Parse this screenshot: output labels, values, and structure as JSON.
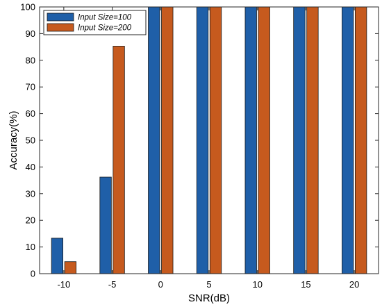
{
  "chart_data": {
    "type": "bar",
    "categories": [
      "-10",
      "-5",
      "0",
      "5",
      "10",
      "15",
      "20"
    ],
    "series": [
      {
        "name": "Input Size=100",
        "values": [
          13.3,
          36.2,
          100,
          100,
          100,
          100,
          100
        ],
        "color": "#1f5fa8"
      },
      {
        "name": "Input Size=200",
        "values": [
          4.5,
          85.3,
          100,
          100,
          100,
          100,
          100
        ],
        "color": "#c65a1e"
      }
    ],
    "title": "",
    "xlabel": "SNR(dB)",
    "ylabel": "Accuracy(%)",
    "ylim": [
      0,
      100
    ],
    "yticks": [
      0,
      10,
      20,
      30,
      40,
      50,
      60,
      70,
      80,
      90,
      100
    ],
    "grid": false,
    "legend_position": "top-left"
  }
}
